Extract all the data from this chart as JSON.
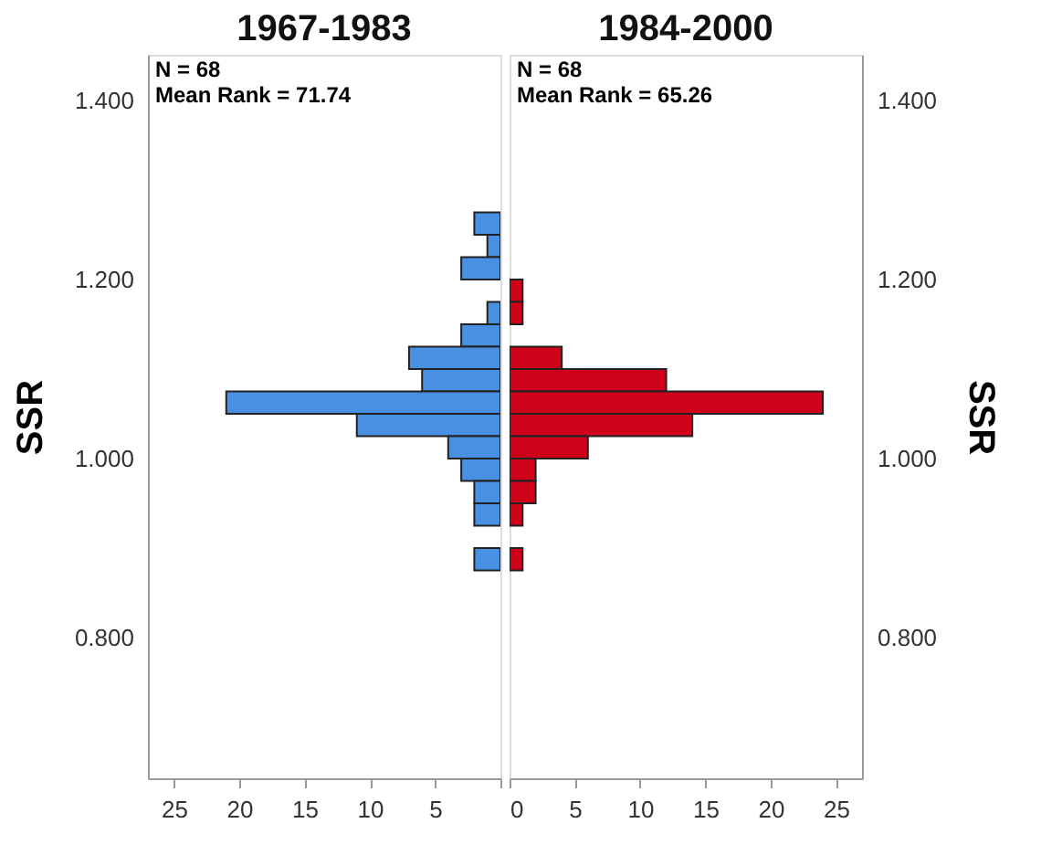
{
  "chart_data": [
    {
      "type": "histogram",
      "orientation": "horizontal",
      "title": "1967-1983",
      "ylabel": "SSR",
      "annotations": [
        "N = 68",
        "Mean Rank = 71.74"
      ],
      "bins": [
        1.275,
        1.25,
        1.225,
        1.2,
        1.175,
        1.15,
        1.125,
        1.1,
        1.075,
        1.05,
        1.025,
        1.0,
        0.975,
        0.95,
        0.925,
        0.9,
        0.875
      ],
      "values": [
        2,
        1,
        3,
        0,
        1,
        3,
        7,
        6,
        21,
        11,
        4,
        3,
        2,
        2,
        0,
        2
      ],
      "color": "#4a90e2",
      "xlim": [
        27,
        0
      ],
      "xticks": [
        25,
        20,
        15,
        10,
        5,
        {
          "value": 0,
          "label": null
        }
      ],
      "ylim": [
        0.643,
        1.451
      ],
      "yticks": [
        {
          "value": 0.8,
          "label": "0.800"
        },
        {
          "value": 1.0,
          "label": "1.000"
        },
        {
          "value": 1.2,
          "label": "1.200"
        },
        {
          "value": 1.4,
          "label": "1.400"
        }
      ],
      "grid": false
    },
    {
      "type": "histogram",
      "orientation": "horizontal",
      "title": "1984-2000",
      "ylabel": "SSR",
      "annotations": [
        "N = 68",
        "Mean Rank = 65.26"
      ],
      "bins": [
        1.275,
        1.25,
        1.225,
        1.2,
        1.175,
        1.15,
        1.125,
        1.1,
        1.075,
        1.05,
        1.025,
        1.0,
        0.975,
        0.95,
        0.925,
        0.9,
        0.875
      ],
      "values": [
        0,
        0,
        0,
        1,
        1,
        0,
        4,
        12,
        24,
        14,
        6,
        2,
        2,
        1,
        0,
        1
      ],
      "color": "#d0021b",
      "xlim": [
        0,
        27
      ],
      "xticks": [
        0,
        5,
        10,
        15,
        20,
        25
      ],
      "ylim": [
        0.643,
        1.451
      ],
      "yticks": [
        {
          "value": 0.8,
          "label": "0.800"
        },
        {
          "value": 1.0,
          "label": "1.000"
        },
        {
          "value": 1.2,
          "label": "1.200"
        },
        {
          "value": 1.4,
          "label": "1.400"
        }
      ],
      "grid": false
    }
  ]
}
